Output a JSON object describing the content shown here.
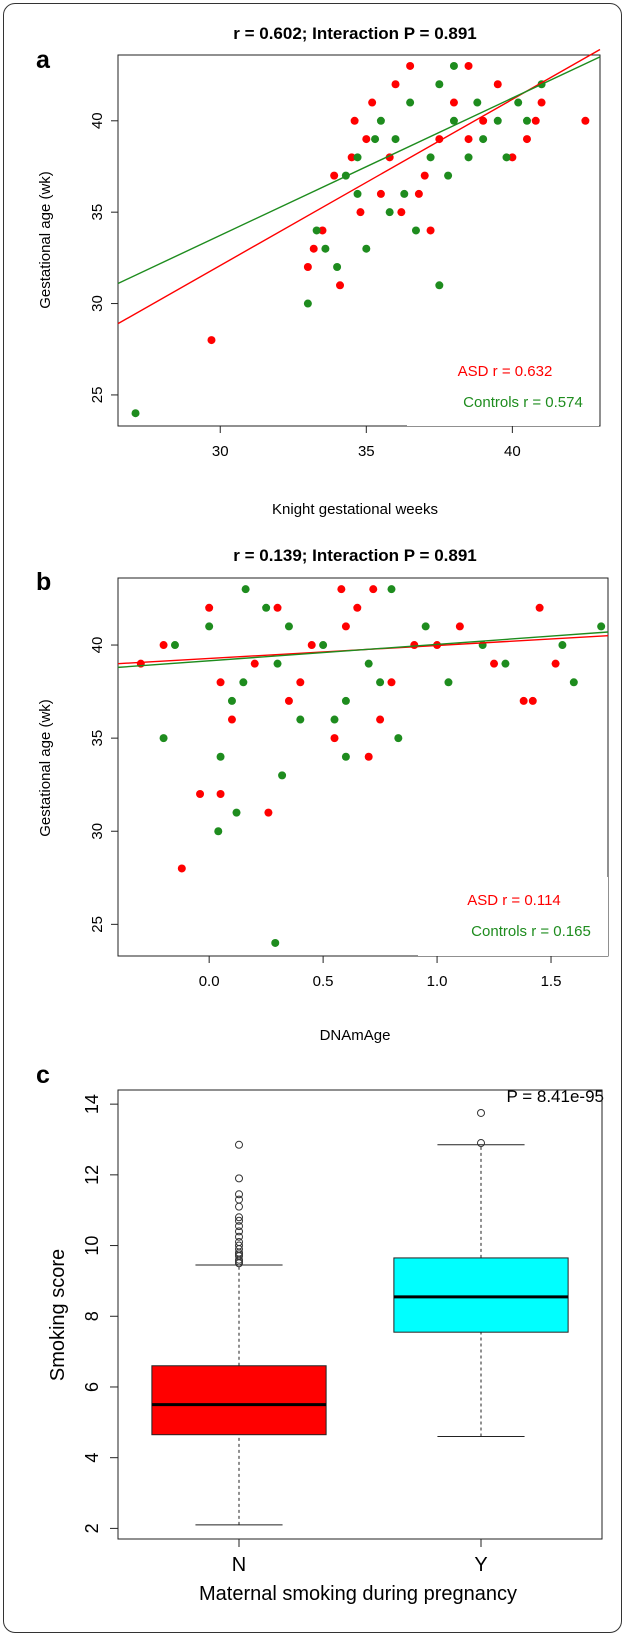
{
  "colors": {
    "asd": "#ff0000",
    "controls": "#1e8c1e",
    "box_n": "#ff0000",
    "box_y": "#00ffff",
    "axis": "#222222"
  },
  "panels": {
    "a": {
      "letter": "a",
      "title": "r = 0.602; Interaction P = 0.891",
      "legend_asd": "ASD r = 0.632",
      "legend_controls": "Controls r = 0.574"
    },
    "b": {
      "letter": "b",
      "title": "r = 0.139; Interaction P = 0.891",
      "legend_asd": "ASD r = 0.114",
      "legend_controls": "Controls r = 0.165"
    },
    "c": {
      "letter": "c",
      "annotation": "P = 8.41e-95"
    }
  },
  "chart_data": [
    {
      "type": "scatter",
      "title": "r = 0.602; Interaction P = 0.891",
      "xlabel": "Knight gestational weeks",
      "ylabel": "Gestational age (wk)",
      "xlim": [
        26.5,
        43
      ],
      "ylim": [
        23.3,
        43.6
      ],
      "xticks": [
        30,
        35,
        40
      ],
      "yticks": [
        25,
        30,
        35,
        40
      ],
      "legend_position": "bottom-right",
      "series": [
        {
          "name": "ASD r = 0.632",
          "color": "#ff0000",
          "points": [
            [
              29.7,
              28
            ],
            [
              33.0,
              32
            ],
            [
              33.2,
              33
            ],
            [
              33.5,
              34
            ],
            [
              34.1,
              31
            ],
            [
              33.9,
              37
            ],
            [
              34.5,
              38
            ],
            [
              35.0,
              39
            ],
            [
              34.6,
              40
            ],
            [
              35.2,
              41
            ],
            [
              36.5,
              43
            ],
            [
              38.5,
              43
            ],
            [
              42.5,
              40
            ],
            [
              37.2,
              34
            ],
            [
              36.8,
              36
            ],
            [
              35.5,
              36
            ],
            [
              34.8,
              35
            ],
            [
              36.0,
              42
            ],
            [
              38.0,
              41
            ],
            [
              39.5,
              42
            ],
            [
              40.5,
              39
            ],
            [
              40.8,
              40
            ],
            [
              41.0,
              41
            ],
            [
              37.5,
              39
            ],
            [
              38.5,
              39
            ],
            [
              39.0,
              40
            ],
            [
              37.0,
              37
            ],
            [
              35.8,
              38
            ],
            [
              36.2,
              35
            ],
            [
              40.0,
              38
            ]
          ]
        },
        {
          "name": "Controls r = 0.574",
          "color": "#1e8c1e",
          "points": [
            [
              27.1,
              24
            ],
            [
              33.0,
              30
            ],
            [
              33.3,
              34
            ],
            [
              33.6,
              33
            ],
            [
              34.0,
              32
            ],
            [
              37.5,
              31
            ],
            [
              35.0,
              33
            ],
            [
              34.3,
              37
            ],
            [
              34.7,
              38
            ],
            [
              35.3,
              39
            ],
            [
              35.5,
              40
            ],
            [
              38.0,
              43
            ],
            [
              36.7,
              34
            ],
            [
              36.3,
              36
            ],
            [
              37.8,
              37
            ],
            [
              38.5,
              38
            ],
            [
              39.5,
              40
            ],
            [
              40.2,
              41
            ],
            [
              41.0,
              42
            ],
            [
              36.5,
              41
            ],
            [
              37.5,
              42
            ],
            [
              39.0,
              39
            ],
            [
              38.0,
              40
            ],
            [
              35.8,
              35
            ],
            [
              34.7,
              36
            ],
            [
              39.8,
              38
            ],
            [
              40.5,
              40
            ],
            [
              37.2,
              38
            ],
            [
              36.0,
              39
            ],
            [
              38.8,
              41
            ]
          ]
        }
      ],
      "fit_lines": [
        {
          "name": "ASD",
          "x": [
            26.5,
            43.0
          ],
          "y": [
            28.9,
            43.9
          ]
        },
        {
          "name": "Controls",
          "x": [
            26.5,
            43.0
          ],
          "y": [
            31.1,
            43.5
          ]
        }
      ]
    },
    {
      "type": "scatter",
      "title": "r = 0.139; Interaction P = 0.891",
      "xlabel": "DNAmAge",
      "ylabel": "Gestational age (wk)",
      "xlim": [
        -0.4,
        1.75
      ],
      "ylim": [
        23.3,
        43.6
      ],
      "xticks": [
        0.0,
        0.5,
        1.0,
        1.5
      ],
      "xtick_labels": [
        "0.0",
        "0.5",
        "1.0",
        "1.5"
      ],
      "yticks": [
        25,
        30,
        35,
        40
      ],
      "legend_position": "bottom-right",
      "series": [
        {
          "name": "ASD r = 0.114",
          "color": "#ff0000",
          "points": [
            [
              -0.12,
              28
            ],
            [
              -0.04,
              32
            ],
            [
              0.05,
              32
            ],
            [
              0.26,
              31
            ],
            [
              0.58,
              43
            ],
            [
              0.72,
              43
            ],
            [
              0.7,
              34
            ],
            [
              1.38,
              37
            ],
            [
              1.42,
              37
            ],
            [
              1.45,
              42
            ],
            [
              1.52,
              39
            ],
            [
              -0.3,
              39
            ],
            [
              -0.2,
              40
            ],
            [
              0.0,
              42
            ],
            [
              0.3,
              42
            ],
            [
              0.6,
              41
            ],
            [
              0.9,
              40
            ],
            [
              1.1,
              41
            ],
            [
              0.4,
              38
            ],
            [
              0.55,
              35
            ],
            [
              0.1,
              36
            ],
            [
              0.35,
              37
            ],
            [
              0.75,
              36
            ],
            [
              1.0,
              40
            ],
            [
              1.25,
              39
            ],
            [
              0.2,
              39
            ],
            [
              0.45,
              40
            ],
            [
              0.8,
              38
            ],
            [
              0.05,
              38
            ],
            [
              0.65,
              42
            ]
          ]
        },
        {
          "name": "Controls r = 0.165",
          "color": "#1e8c1e",
          "points": [
            [
              -0.2,
              35
            ],
            [
              0.04,
              30
            ],
            [
              0.12,
              31
            ],
            [
              0.29,
              24
            ],
            [
              0.32,
              33
            ],
            [
              0.16,
              43
            ],
            [
              0.8,
              43
            ],
            [
              0.83,
              35
            ],
            [
              0.6,
              34
            ],
            [
              1.6,
              38
            ],
            [
              1.72,
              41
            ],
            [
              1.55,
              40
            ],
            [
              -0.15,
              40
            ],
            [
              0.0,
              41
            ],
            [
              0.25,
              42
            ],
            [
              0.5,
              40
            ],
            [
              0.7,
              39
            ],
            [
              0.95,
              41
            ],
            [
              1.2,
              40
            ],
            [
              0.15,
              38
            ],
            [
              0.4,
              36
            ],
            [
              0.1,
              37
            ],
            [
              0.3,
              39
            ],
            [
              0.6,
              37
            ],
            [
              1.3,
              39
            ],
            [
              0.05,
              34
            ],
            [
              0.35,
              41
            ],
            [
              0.75,
              38
            ],
            [
              0.55,
              36
            ],
            [
              1.05,
              38
            ]
          ]
        }
      ],
      "fit_lines": [
        {
          "name": "ASD",
          "x": [
            -0.4,
            1.75
          ],
          "y": [
            39.0,
            40.5
          ]
        },
        {
          "name": "Controls",
          "x": [
            -0.4,
            1.75
          ],
          "y": [
            38.8,
            40.7
          ]
        }
      ]
    },
    {
      "type": "box",
      "xlabel": "Maternal smoking during pregnancy",
      "ylabel": "Smoking score",
      "categories": [
        "N",
        "Y"
      ],
      "ylim": [
        1.7,
        14.4
      ],
      "yticks": [
        2,
        4,
        6,
        8,
        10,
        12,
        14
      ],
      "boxes": [
        {
          "category": "N",
          "color": "#ff0000",
          "whisker_low": 2.1,
          "q1": 4.65,
          "median": 5.5,
          "q3": 6.6,
          "whisker_high": 9.45,
          "outliers": [
            9.5,
            9.55,
            9.6,
            9.7,
            9.75,
            9.8,
            9.9,
            10.0,
            10.1,
            10.25,
            10.4,
            10.55,
            10.7,
            10.8,
            11.1,
            11.3,
            11.45,
            11.9,
            12.85
          ]
        },
        {
          "category": "Y",
          "color": "#00ffff",
          "whisker_low": 4.6,
          "q1": 7.55,
          "median": 8.55,
          "q3": 9.65,
          "whisker_high": 12.85,
          "outliers": [
            12.9,
            13.75
          ]
        }
      ],
      "annotation": "P = 8.41e-95"
    }
  ]
}
